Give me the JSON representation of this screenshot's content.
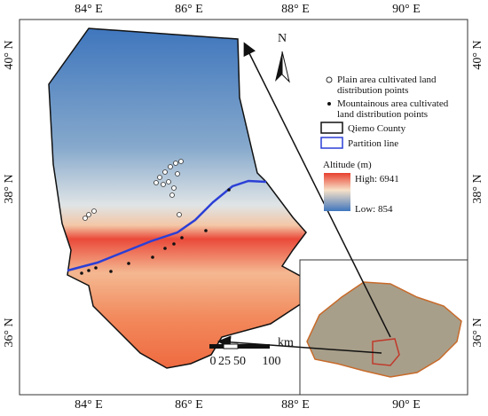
{
  "map": {
    "lon_labels": [
      "84° E",
      "86° E",
      "88° E",
      "90° E"
    ],
    "lat_labels": [
      "40° N",
      "38° N",
      "36° N"
    ],
    "north": "N",
    "legend": {
      "plain_points": "Plain area cultivated land distribution points",
      "mountain_points": "Mountainous area cultivated land distribution points",
      "county": "Qiemo County",
      "partition": "Partition line",
      "altitude_title": "Altitude (m)",
      "high": "High: 6941",
      "low": "Low: 854"
    },
    "scale_bar": {
      "labels": [
        "0",
        "25",
        "50",
        "100"
      ],
      "unit": "km"
    }
  }
}
